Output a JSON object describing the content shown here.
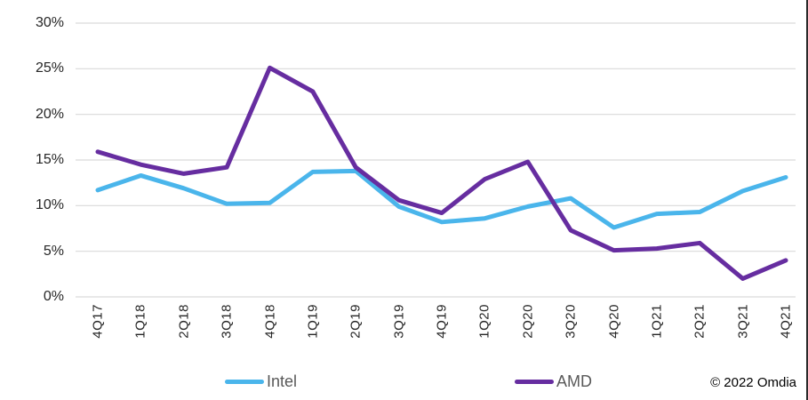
{
  "chart_data": {
    "type": "line",
    "title": "",
    "categories": [
      "4Q17",
      "1Q18",
      "2Q18",
      "3Q18",
      "4Q18",
      "1Q19",
      "2Q19",
      "3Q19",
      "4Q19",
      "1Q20",
      "2Q20",
      "3Q20",
      "4Q20",
      "1Q21",
      "2Q21",
      "3Q21",
      "4Q21"
    ],
    "series": [
      {
        "name": "Intel",
        "color": "#4AB5EB",
        "values": [
          11.7,
          13.3,
          11.9,
          10.2,
          10.3,
          13.7,
          13.8,
          9.9,
          8.2,
          8.6,
          9.9,
          10.8,
          7.6,
          9.1,
          9.3,
          11.6,
          13.1
        ]
      },
      {
        "name": "AMD",
        "color": "#662DA0",
        "values": [
          15.9,
          14.5,
          13.5,
          14.2,
          25.1,
          22.5,
          14.2,
          10.6,
          9.2,
          12.9,
          14.8,
          7.3,
          5.1,
          5.3,
          5.9,
          2.0,
          4.0
        ]
      }
    ],
    "xlabel": "",
    "ylabel": "",
    "ylim": [
      0,
      30
    ],
    "y_ticks": [
      "0%",
      "5%",
      "10%",
      "15%",
      "20%",
      "25%",
      "30%"
    ],
    "y_tick_values": [
      0,
      5,
      10,
      15,
      20,
      25,
      30
    ],
    "grid": "horizontal",
    "legend_position": "bottom"
  },
  "footer": {
    "copyright": "© 2022 Omdia"
  },
  "colors": {
    "gridline": "#D9D9D9",
    "axis_text": "#262626",
    "legend_text": "#595959",
    "frame_border": "#2B2B2B"
  }
}
